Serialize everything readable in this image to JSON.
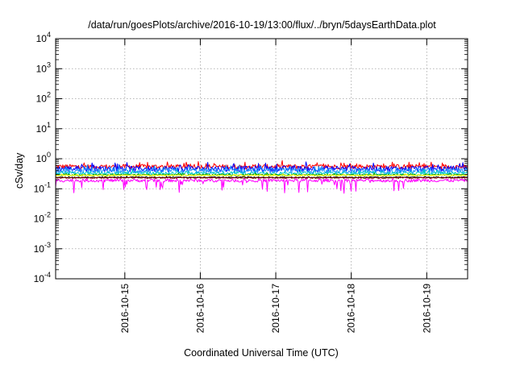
{
  "chart_data": {
    "type": "line",
    "title": "/data/run/goesPlots/archive/2016-10-19/13:00/flux/../bryn/5daysEarthData.plot",
    "xlabel": "Coordinated Universal Time (UTC)",
    "ylabel": "cSv/day",
    "yscale": "log",
    "ylim": [
      0.0001,
      10000
    ],
    "xlim": [
      "2016-10-14T02:00",
      "2016-10-19T13:00"
    ],
    "y_ticks": [
      {
        "value": 0.0001,
        "base": "10",
        "exp": "-4"
      },
      {
        "value": 0.001,
        "base": "10",
        "exp": "-3"
      },
      {
        "value": 0.01,
        "base": "10",
        "exp": "-2"
      },
      {
        "value": 0.1,
        "base": "10",
        "exp": "-1"
      },
      {
        "value": 1,
        "base": "10",
        "exp": "0"
      },
      {
        "value": 10,
        "base": "10",
        "exp": "1"
      },
      {
        "value": 100,
        "base": "10",
        "exp": "2"
      },
      {
        "value": 1000,
        "base": "10",
        "exp": "3"
      },
      {
        "value": 10000,
        "base": "10",
        "exp": "4"
      }
    ],
    "x_ticks": [
      {
        "value": "2016-10-15T00:00",
        "label": "2016-10-15"
      },
      {
        "value": "2016-10-16T00:00",
        "label": "2016-10-16"
      },
      {
        "value": "2016-10-17T00:00",
        "label": "2016-10-17"
      },
      {
        "value": "2016-10-18T00:00",
        "label": "2016-10-18"
      },
      {
        "value": "2016-10-19T00:00",
        "label": "2016-10-19"
      }
    ],
    "grid": true,
    "series": [
      {
        "color": "#ff0000",
        "level": 0.55,
        "spread": 0.18,
        "spikes": 0.3
      },
      {
        "color": "#0000ff",
        "level": 0.47,
        "spread": 0.22,
        "spikes": 0.35
      },
      {
        "color": "#1e90ff",
        "level": 0.4,
        "spread": 0.2,
        "spikes": 0.3
      },
      {
        "color": "#00c8c8",
        "level": 0.33,
        "spread": 0.12,
        "spikes": 0.2
      },
      {
        "color": "#00a000",
        "level": 0.29,
        "spread": 0.06,
        "spikes": 0.08
      },
      {
        "color": "#ffff00",
        "level": 0.28,
        "spread": 0.05,
        "spikes": 0.06
      },
      {
        "color": "#000000",
        "level": 0.24,
        "spread": 0.04,
        "spikes": 0.05
      },
      {
        "color": "#800000",
        "level": 0.23,
        "spread": 0.04,
        "spikes": 0.05
      },
      {
        "color": "#ff00ff",
        "level": 0.19,
        "spread": 0.12,
        "dips": 0.35
      }
    ]
  }
}
